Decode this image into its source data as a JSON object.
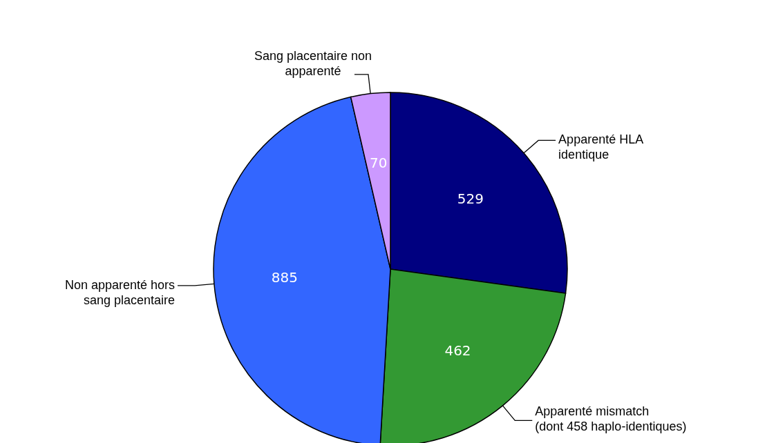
{
  "chart_data": {
    "type": "pie",
    "categories": [
      "Apparenté HLA\nidentique",
      "Apparenté mismatch\n(dont 458 haplo-identiques)",
      "Non apparenté hors\nsang placentaire",
      "Sang placentaire non\napparenté"
    ],
    "values": [
      529,
      462,
      885,
      70
    ],
    "colors": [
      "#000080",
      "#339933",
      "#3366ff",
      "#cc99ff"
    ],
    "data_labels": true
  }
}
